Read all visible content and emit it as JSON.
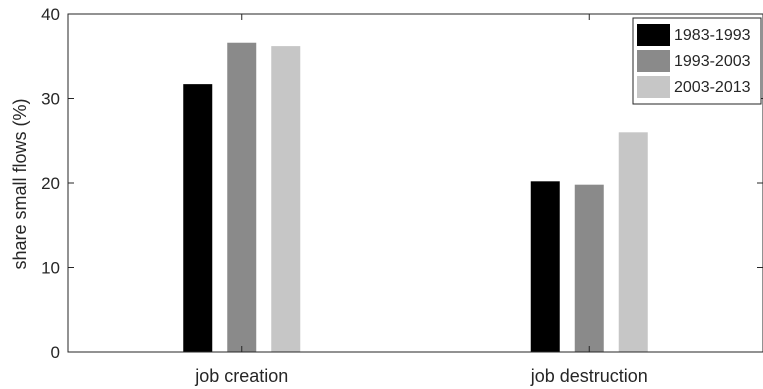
{
  "chart_data": {
    "type": "bar",
    "categories": [
      "job creation",
      "job destruction"
    ],
    "series": [
      {
        "name": "1983-1993",
        "values": [
          31.7,
          20.2
        ],
        "color": "#000000"
      },
      {
        "name": "1993-2003",
        "values": [
          36.6,
          19.8
        ],
        "color": "#8a8a8a"
      },
      {
        "name": "2003-2013",
        "values": [
          36.2,
          26.0
        ],
        "color": "#c6c6c6"
      }
    ],
    "ylabel": "share small flows (%)",
    "xlabel": "",
    "ylim": [
      0,
      40
    ],
    "yticks": [
      0,
      10,
      20,
      30,
      40
    ],
    "grid": false,
    "legend_position": "top-right"
  }
}
